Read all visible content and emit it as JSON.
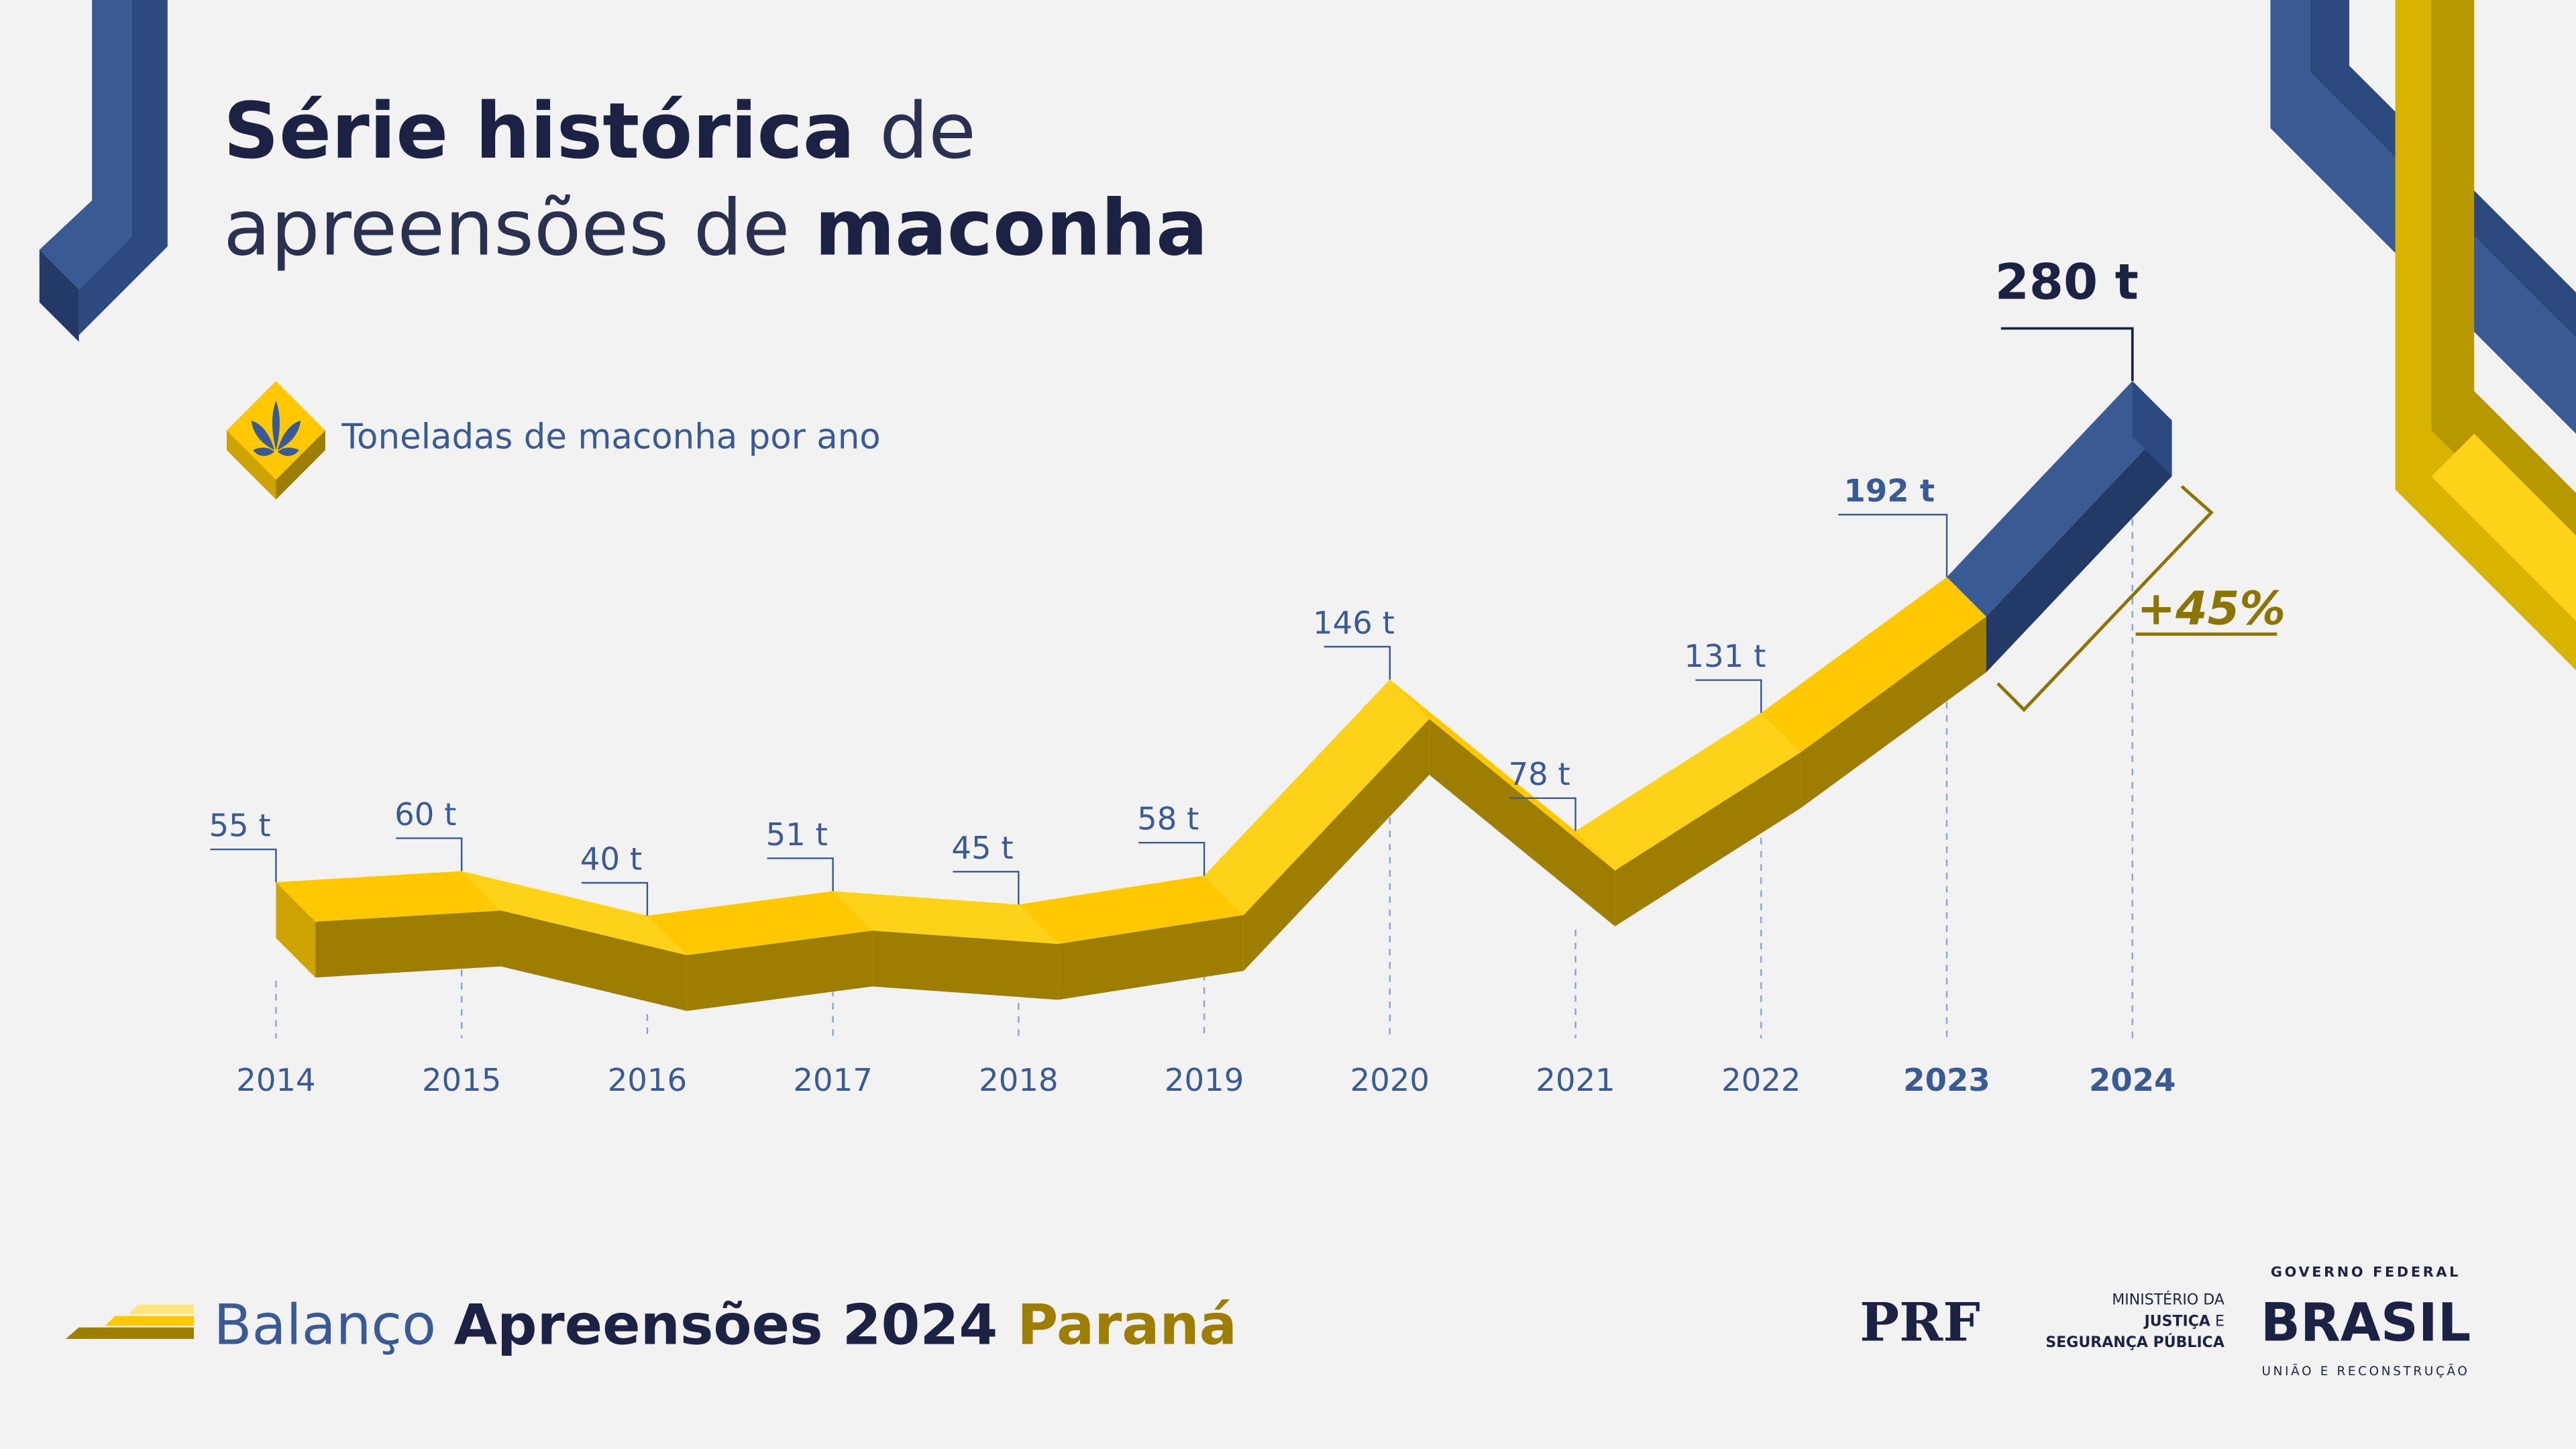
{
  "title": {
    "bold1": "Série histórica",
    "light1": " de",
    "light2": "apreensões de ",
    "bold2": "maconha"
  },
  "legend": {
    "label": "Toneladas de maconha por ano",
    "icon": "cannabis-leaf-icon"
  },
  "chart_data": {
    "type": "line",
    "style": "3d-ribbon",
    "categories": [
      "2014",
      "2015",
      "2016",
      "2017",
      "2018",
      "2019",
      "2020",
      "2021",
      "2022",
      "2023",
      "2024"
    ],
    "values": [
      55,
      60,
      40,
      51,
      45,
      58,
      146,
      78,
      131,
      192,
      280
    ],
    "value_labels": [
      "55 t",
      "60 t",
      "40 t",
      "51 t",
      "45 t",
      "58 t",
      "146 t",
      "78 t",
      "131 t",
      "192 t",
      "280 t"
    ],
    "unit": "t",
    "highlight_years": [
      "2023",
      "2024"
    ],
    "annotation": "+45%",
    "colors": {
      "ribbon_top": "#ffc800",
      "ribbon_front": "#9e7e00",
      "highlight_top": "#3a5a94",
      "highlight_front": "#233a66",
      "annotation": "#8c7400"
    }
  },
  "footer": {
    "light": "Balanço ",
    "bold": "Apreensões 2024 ",
    "region": "Paraná"
  },
  "logos": {
    "prf": "PRF",
    "ministry_line1": "MINISTÉRIO DA",
    "ministry_line2a": "JUSTIÇA",
    "ministry_line2b": " E",
    "ministry_line3": "SEGURANÇA PÚBLICA",
    "gov_top": "GOVERNO FEDERAL",
    "gov_main": "BRASIL",
    "gov_bottom": "UNIÃO E RECONSTRUÇÃO"
  }
}
